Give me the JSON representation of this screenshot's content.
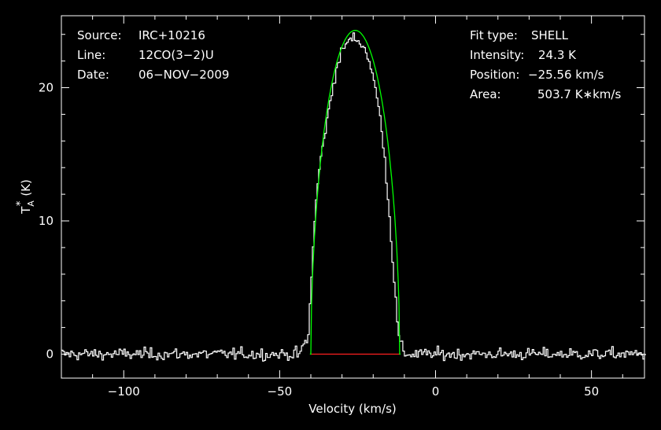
{
  "chart_data": {
    "type": "line",
    "xlabel": "Velocity (km/s)",
    "ylabel_main": "T",
    "ylabel_sub": "A",
    "ylabel_sup": "*",
    "ylabel_unit": "(K)",
    "xlim": [
      -120,
      67
    ],
    "ylim": [
      -1.8,
      25.4
    ],
    "x_ticks": [
      -100,
      -50,
      0,
      50
    ],
    "x_tick_labels": [
      "−100",
      "−50",
      "0",
      "50"
    ],
    "y_ticks": [
      0,
      10,
      20
    ],
    "y_tick_labels": [
      "0",
      "10",
      "20"
    ],
    "grid": false,
    "colors": {
      "background": "#000000",
      "frame": "#ffffff",
      "data": "#ffffff",
      "fit": "#00ff00",
      "baseline": "#ff2020"
    },
    "info_left": [
      {
        "key": "Source:",
        "value": "IRC+10216"
      },
      {
        "key": "Line:",
        "value": "12CO(3−2)U"
      },
      {
        "key": "Date:",
        "value": "06−NOV−2009"
      }
    ],
    "info_right": [
      {
        "key": "Fit type:",
        "value": "SHELL"
      },
      {
        "key": "Intensity:",
        "value": "24.3 K"
      },
      {
        "key": "Position:",
        "value": "−25.56 km/s"
      },
      {
        "key": "Area:",
        "value": "503.7 K∗km/s"
      }
    ],
    "fit": {
      "model": "SHELL",
      "center": -25.56,
      "peak": 24.3,
      "v_min": -40.0,
      "v_max": -11.5
    },
    "spectrum": {
      "name": "data",
      "channel_width": 0.5,
      "noise_rms": 0.22,
      "points": [
        [
          -43,
          0.3
        ],
        [
          -42,
          0.9
        ],
        [
          -41,
          0.8
        ],
        [
          -40,
          4.5
        ],
        [
          -39,
          9.5
        ],
        [
          -38,
          12.0
        ],
        [
          -37,
          14.5
        ],
        [
          -36,
          15.8
        ],
        [
          -35,
          17.2
        ],
        [
          -34,
          18.6
        ],
        [
          -33,
          20.0
        ],
        [
          -32,
          21.2
        ],
        [
          -31,
          22.0
        ],
        [
          -30,
          22.7
        ],
        [
          -29,
          23.2
        ],
        [
          -28,
          23.5
        ],
        [
          -27,
          23.6
        ],
        [
          -26,
          23.7
        ],
        [
          -25,
          23.6
        ],
        [
          -24,
          23.4
        ],
        [
          -23,
          23.0
        ],
        [
          -22,
          22.6
        ],
        [
          -21,
          21.8
        ],
        [
          -20,
          20.8
        ],
        [
          -19,
          19.5
        ],
        [
          -18,
          18.2
        ],
        [
          -17,
          16.5
        ],
        [
          -16,
          14.0
        ],
        [
          -15,
          11.0
        ],
        [
          -14,
          8.0
        ],
        [
          -13,
          4.8
        ],
        [
          -12,
          1.5
        ],
        [
          -11,
          0.6
        ],
        [
          -10,
          0.3
        ]
      ]
    },
    "baseline_segment": {
      "x_from": -40.0,
      "x_to": -11.5,
      "y": 0
    }
  }
}
